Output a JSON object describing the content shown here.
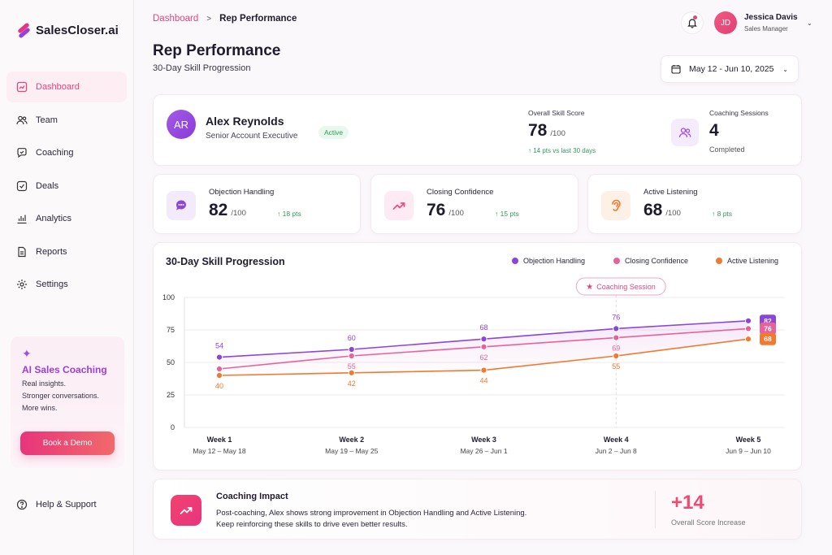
{
  "app": {
    "name": "SalesCloser.ai"
  },
  "sidebar": {
    "items": [
      {
        "label": "Dashboard",
        "icon": "dashboard-icon"
      },
      {
        "label": "Team",
        "icon": "team-icon"
      },
      {
        "label": "Coaching",
        "icon": "coaching-icon"
      },
      {
        "label": "Deals",
        "icon": "deals-icon"
      },
      {
        "label": "Analytics",
        "icon": "analytics-icon"
      },
      {
        "label": "Reports",
        "icon": "reports-icon"
      },
      {
        "label": "Settings",
        "icon": "settings-icon"
      }
    ],
    "active_index": 0,
    "promo": {
      "title": "AI Sales Coaching",
      "lines": [
        "Real insights.",
        "Stronger conversations.",
        "More wins."
      ],
      "button": "Book a Demo"
    },
    "help": "Help & Support"
  },
  "header": {
    "breadcrumb": {
      "parent": "Dashboard",
      "current": "Rep Performance"
    },
    "title": "Rep Performance",
    "subtitle": "30-Day Skill Progression",
    "user": {
      "initials": "JD",
      "name": "Jessica Davis",
      "role": "Sales Manager"
    },
    "date_range": "May 12 - Jun 10, 2025"
  },
  "profile": {
    "initials": "AR",
    "name": "Alex Reynolds",
    "title": "Senior Account Executive",
    "status": "Active",
    "overall": {
      "label": "Overall Skill Score",
      "value": "78",
      "max": "/100",
      "delta": "↑ 14 pts vs last 30 days"
    },
    "sessions": {
      "label": "Coaching Sessions",
      "value": "4",
      "sub": "Completed"
    }
  },
  "metrics": [
    {
      "label": "Objection Handling",
      "value": "82",
      "max": "/100",
      "delta": "↑ 18 pts",
      "icon": "chat-bubble-icon",
      "color": "#8b45d9",
      "bg": "#f3eafb"
    },
    {
      "label": "Closing Confidence",
      "value": "76",
      "max": "/100",
      "delta": "↑ 15 pts",
      "icon": "trend-up-icon",
      "color": "#e8508a",
      "bg": "#fdeaf2"
    },
    {
      "label": "Active Listening",
      "value": "68",
      "max": "/100",
      "delta": "↑ 8 pts",
      "icon": "ear-icon",
      "color": "#f07a2f",
      "bg": "#fdf0e6"
    }
  ],
  "chart_data": {
    "type": "line",
    "title": "30-Day Skill Progression",
    "categories": [
      "Week 1",
      "Week 2",
      "Week 3",
      "Week 4",
      "Week 5"
    ],
    "category_sublabels": [
      "May 12 – May 18",
      "May 19 – May 25",
      "May 26 – Jun 1",
      "Jun 2 – Jun 8",
      "Jun 9 – Jun 10"
    ],
    "ylim": [
      0,
      100
    ],
    "yticks": [
      0,
      25,
      50,
      75,
      100
    ],
    "grid": true,
    "legend_position": "top-right",
    "series": [
      {
        "name": "Objection Handling",
        "color": "#8b45d9",
        "values": [
          54,
          60,
          68,
          76,
          82
        ],
        "point_labels": [
          "54",
          "60",
          "68",
          "76",
          ""
        ],
        "end_label": "82"
      },
      {
        "name": "Closing Confidence",
        "color": "#e8629a",
        "values": [
          45,
          55,
          62,
          69,
          76
        ],
        "point_labels": [
          "",
          "55",
          "62",
          "69",
          ""
        ],
        "end_label": "76"
      },
      {
        "name": "Active Listening",
        "color": "#f07a2f",
        "values": [
          40,
          42,
          44,
          55,
          68
        ],
        "point_labels": [
          "40",
          "42",
          "44",
          "55",
          ""
        ],
        "end_label": "68"
      }
    ],
    "annotation": {
      "label": "Coaching Session",
      "category_index": 3
    }
  },
  "impact": {
    "title": "Coaching Impact",
    "line1": "Post-coaching, Alex shows strong improvement in Objection Handling and Active Listening.",
    "line2": "Keep reinforcing these skills to drive even better results.",
    "value": "+14",
    "value_label": "Overall Score Increase"
  }
}
